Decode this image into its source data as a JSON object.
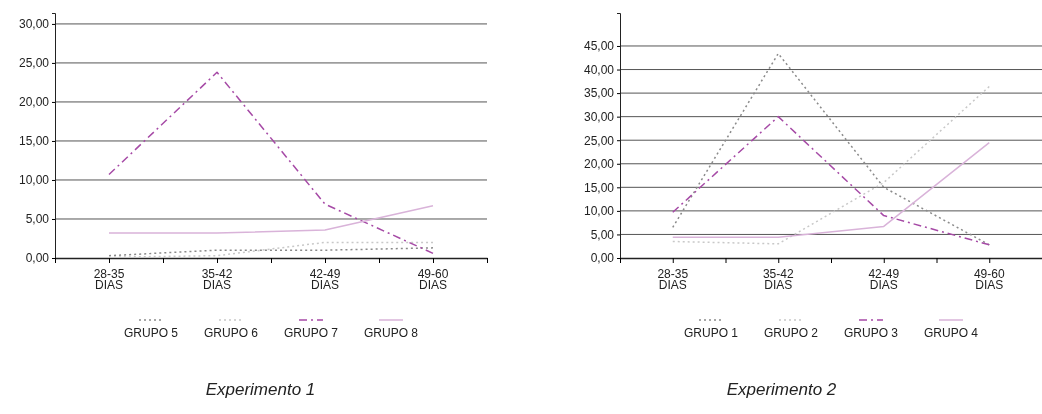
{
  "chart_data": [
    {
      "type": "line",
      "title": "Experimento 1",
      "categories": [
        "28-35 DIAS",
        "35-42 DIAS",
        "42-49 DIAS",
        "49-60 DIAS"
      ],
      "ylim": [
        0,
        31.4
      ],
      "yticks": [
        {
          "value": 0,
          "label": "0,00"
        },
        {
          "value": 5,
          "label": "5,00"
        },
        {
          "value": 10,
          "label": "10,00"
        },
        {
          "value": 15,
          "label": "15,00"
        },
        {
          "value": 20,
          "label": "20,00"
        },
        {
          "value": 25,
          "label": "25,00"
        },
        {
          "value": 30,
          "label": "30,00"
        }
      ],
      "grid": "y",
      "legend": "bottom",
      "marker": "none",
      "series": [
        {
          "name": "GRUPO 5",
          "color": "#8a8a8a",
          "line_style": "dotted",
          "values": [
            0.3,
            1.0,
            1.0,
            1.3
          ]
        },
        {
          "name": "GRUPO 6",
          "color": "#c8c8c8",
          "line_style": "dotted",
          "values": [
            0.1,
            0.3,
            2.0,
            2.0
          ]
        },
        {
          "name": "GRUPO 7",
          "color": "#a64aa6",
          "line_style": "dashed",
          "values": [
            10.7,
            23.8,
            6.9,
            0.6
          ]
        },
        {
          "name": "GRUPO 8",
          "color": "#d9b3d9",
          "line_style": "solid",
          "values": [
            3.2,
            3.2,
            3.6,
            6.7
          ]
        }
      ]
    },
    {
      "type": "line",
      "title": "Experimento 2",
      "categories": [
        "28-35 DIAS",
        "35-42 DIAS",
        "42-49 DIAS",
        "49-60 DIAS"
      ],
      "ylim": [
        0,
        52
      ],
      "yticks": [
        {
          "value": 0,
          "label": "0,00"
        },
        {
          "value": 5,
          "label": "5,00"
        },
        {
          "value": 10,
          "label": "10,00"
        },
        {
          "value": 15,
          "label": "15,00"
        },
        {
          "value": 20,
          "label": "20,00"
        },
        {
          "value": 25,
          "label": "25,00"
        },
        {
          "value": 30,
          "label": "30,00"
        },
        {
          "value": 35,
          "label": "35,00"
        },
        {
          "value": 40,
          "label": "40,00"
        },
        {
          "value": 45,
          "label": "45,00"
        }
      ],
      "grid": "y",
      "legend": "bottom",
      "marker": "none",
      "series": [
        {
          "name": "GRUPO 1",
          "color": "#8a8a8a",
          "line_style": "dotted",
          "values": [
            6.5,
            43.4,
            15.0,
            2.8
          ]
        },
        {
          "name": "GRUPO 2",
          "color": "#c8c8c8",
          "line_style": "dotted",
          "values": [
            3.5,
            3.0,
            16.0,
            36.4
          ]
        },
        {
          "name": "GRUPO 3",
          "color": "#a64aa6",
          "line_style": "dashed",
          "values": [
            9.7,
            30.0,
            9.0,
            2.8
          ]
        },
        {
          "name": "GRUPO 4",
          "color": "#d9b3d9",
          "line_style": "solid",
          "values": [
            4.4,
            4.4,
            6.7,
            24.5
          ]
        }
      ]
    }
  ]
}
